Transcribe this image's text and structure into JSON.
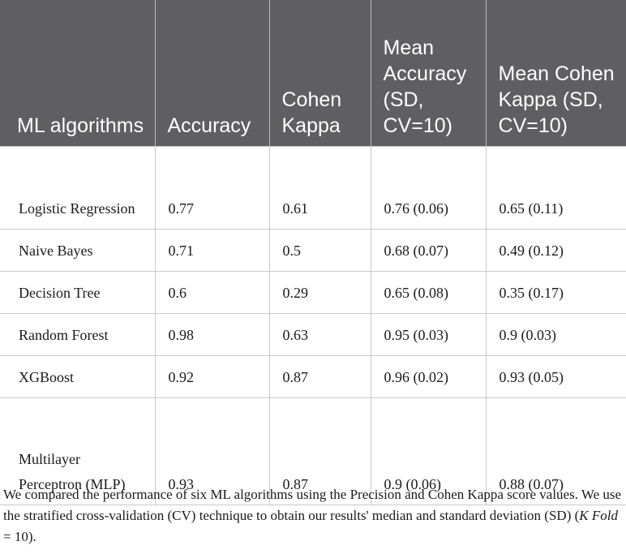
{
  "table": {
    "headers": [
      "ML algorithms",
      "Accuracy",
      "Cohen Kappa",
      "Mean Accuracy (SD, CV=10)",
      "Mean Cohen Kappa (SD, CV=10)"
    ],
    "rows": [
      [
        "Logistic Regression",
        "0.77",
        "0.61",
        "0.76 (0.06)",
        "0.65 (0.11)"
      ],
      [
        "Naive Bayes",
        "0.71",
        "0.5",
        "0.68 (0.07)",
        "0.49 (0.12)"
      ],
      [
        "Decision Tree",
        "0.6",
        "0.29",
        "0.65 (0.08)",
        "0.35 (0.17)"
      ],
      [
        "Random Forest",
        "0.98",
        "0.63",
        "0.95 (0.03)",
        "0.9 (0.03)"
      ],
      [
        "XGBoost",
        "0.92",
        "0.87",
        "0.96 (0.02)",
        "0.93 (0.05)"
      ],
      [
        "Multilayer Perceptron (MLP)",
        "0.93",
        "0.87",
        "0.9 (0.06)",
        "0.88 (0.07)"
      ]
    ]
  },
  "footnote": {
    "text": "We compared the performance of six ML algorithms using the Precision and Cohen Kappa score values. We use the stratified cross-validation (CV) technique to obtain our results' median and standard deviation (SD) (",
    "italic": "K Fold",
    "suffix": " = 10)."
  },
  "colors": {
    "header_bg": "#5f5f62",
    "header_text": "#ffffff",
    "grid": "#c9c9c9"
  }
}
